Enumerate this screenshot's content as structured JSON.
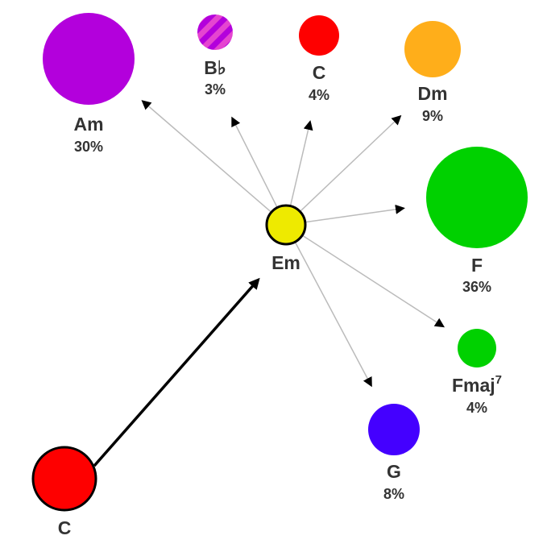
{
  "current_chord": {
    "name": "Em",
    "color": "#eeea00"
  },
  "previous_chord": {
    "name": "C",
    "color": "#fe0000"
  },
  "next_chords": [
    {
      "name": "Am",
      "suffix": "",
      "percent": "30%",
      "color": "#b300dc"
    },
    {
      "name": "B♭",
      "suffix": "",
      "percent": "3%",
      "color": "#b300dc",
      "color2": "#e545d0",
      "striped": true
    },
    {
      "name": "C",
      "suffix": "",
      "percent": "4%",
      "color": "#fe0000"
    },
    {
      "name": "Dm",
      "suffix": "",
      "percent": "9%",
      "color": "#ffae1a"
    },
    {
      "name": "F",
      "suffix": "",
      "percent": "36%",
      "color": "#00d100"
    },
    {
      "name": "Fmaj",
      "suffix": "7",
      "percent": "4%",
      "color": "#00d100"
    },
    {
      "name": "G",
      "suffix": "",
      "percent": "8%",
      "color": "#4400ff"
    }
  ]
}
